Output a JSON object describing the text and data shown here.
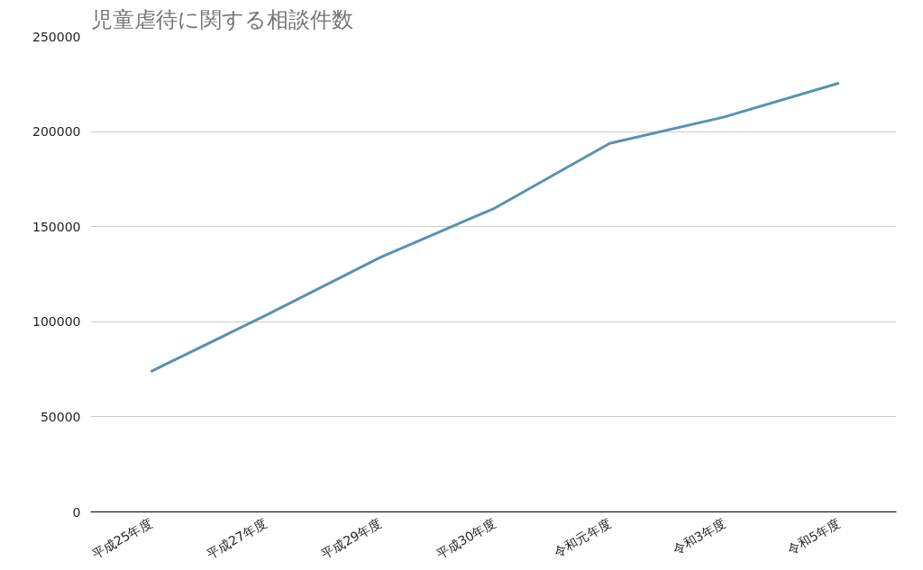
{
  "chart_data": {
    "type": "line",
    "title": "児童虐待に関する相談件数",
    "categories": [
      "平成25年度",
      "平成27年度",
      "平成29年度",
      "平成30年度",
      "令和元年度",
      "令和3年度",
      "令和5年度"
    ],
    "series": [
      {
        "color": "#5793b0",
        "values": [
          73800,
          103300,
          133800,
          159800,
          193800,
          207700,
          225500
        ]
      }
    ],
    "ylim": [
      0,
      250000
    ],
    "yticks": [
      0,
      50000,
      100000,
      150000,
      200000,
      250000
    ],
    "grid": "y",
    "marker": "none",
    "line_style": "solid"
  }
}
